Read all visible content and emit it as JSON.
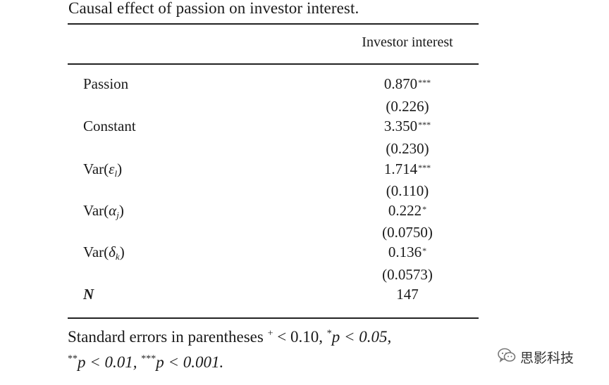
{
  "table": {
    "title": "Causal effect of passion on investor interest.",
    "column_header": "Investor interest",
    "rows": [
      {
        "label": "Passion",
        "coef": "0.870",
        "stars": "***",
        "se": "(0.226)"
      },
      {
        "label": "Constant",
        "coef": "3.350",
        "stars": "***",
        "se": "(0.230)"
      },
      {
        "label_prefix": "Var(",
        "label_symbol": "ε",
        "label_sub": "l",
        "label_suffix": ")",
        "coef": "1.714",
        "stars": "***",
        "se": "(0.110)"
      },
      {
        "label_prefix": "Var(",
        "label_symbol": "α",
        "label_sub": "j",
        "label_suffix": ")",
        "coef": "0.222",
        "stars": "*",
        "se": "(0.0750)"
      },
      {
        "label_prefix": "Var(",
        "label_symbol": "δ",
        "label_sub": "k",
        "label_suffix": ")",
        "coef": "0.136",
        "stars": "*",
        "se": "(0.0573)"
      },
      {
        "label": "N",
        "coef": "147"
      }
    ],
    "footnote": {
      "line1_a": "Standard errors in parentheses ",
      "line1_plus": "+",
      "line1_b": " < 0.10, ",
      "line1_star": "*",
      "line1_c": "p < 0.05,",
      "line2_star": "**",
      "line2_a": "p < 0.01, ",
      "line2_star3": "***",
      "line2_b": "p < 0.001."
    }
  },
  "watermark": {
    "text": "思影科技",
    "icon": "wechat-icon"
  }
}
